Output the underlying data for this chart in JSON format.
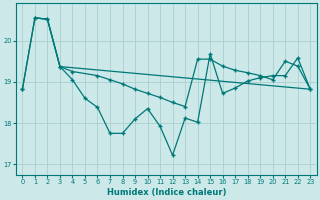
{
  "xlabel": "Humidex (Indice chaleur)",
  "background_color": "#cce8e8",
  "grid_color": "#aad0d0",
  "line_color": "#007878",
  "ylim": [
    16.75,
    20.9
  ],
  "xlim": [
    -0.5,
    23.5
  ],
  "yticks": [
    17,
    18,
    19,
    20
  ],
  "xticks": [
    0,
    1,
    2,
    3,
    4,
    5,
    6,
    7,
    8,
    9,
    10,
    11,
    12,
    13,
    14,
    15,
    16,
    17,
    18,
    19,
    20,
    21,
    22,
    23
  ],
  "line1_x": [
    0,
    1,
    2,
    3,
    4,
    5,
    6,
    7,
    8,
    9,
    10,
    11,
    12,
    13,
    14,
    15,
    16,
    17,
    18,
    19,
    20,
    21,
    22,
    23
  ],
  "line1_y": [
    18.82,
    20.55,
    20.52,
    19.37,
    19.05,
    18.6,
    18.38,
    17.75,
    17.75,
    18.1,
    18.35,
    17.92,
    17.22,
    18.12,
    18.02,
    19.68,
    18.72,
    18.85,
    19.02,
    19.1,
    19.15,
    19.15,
    19.58,
    18.82
  ],
  "line2_x": [
    0,
    1,
    2,
    3,
    4,
    6,
    7,
    8,
    9,
    10,
    11,
    12,
    13,
    14,
    15,
    16,
    17,
    18,
    19,
    20,
    21,
    22,
    23
  ],
  "line2_y": [
    18.82,
    20.55,
    20.52,
    19.37,
    19.25,
    19.15,
    19.05,
    18.95,
    18.82,
    18.72,
    18.62,
    18.5,
    18.4,
    19.55,
    19.55,
    19.38,
    19.28,
    19.22,
    19.15,
    19.05,
    19.5,
    19.38,
    18.82
  ],
  "line3_x": [
    1,
    2,
    3,
    23
  ],
  "line3_y": [
    20.55,
    20.52,
    19.37,
    18.82
  ]
}
